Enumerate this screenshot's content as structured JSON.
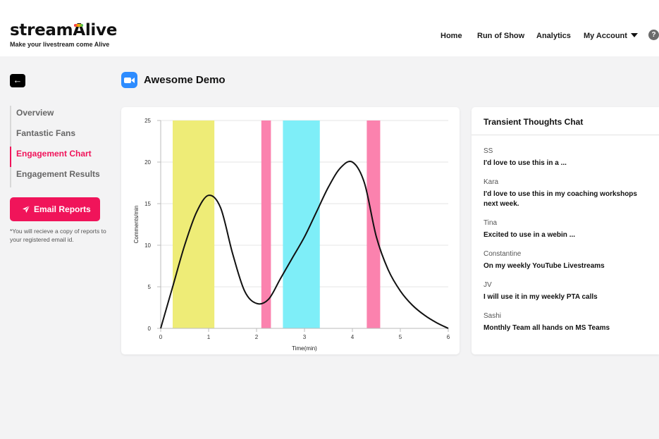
{
  "brand": {
    "name_pre": "stream",
    "name_a": "A",
    "name_post": "live",
    "tagline": "Make your livestream come Alive"
  },
  "nav": {
    "items": [
      "Home",
      "Run of Show",
      "Analytics",
      "My Account"
    ],
    "help": "?"
  },
  "page": {
    "back": "←",
    "title": "Awesome Demo"
  },
  "sidebar": {
    "items": [
      {
        "label": "Overview",
        "active": false
      },
      {
        "label": "Fantastic Fans",
        "active": false
      },
      {
        "label": "Engagement Chart",
        "active": true
      },
      {
        "label": "Engagement Results",
        "active": false
      }
    ],
    "email_button": "Email Reports",
    "email_note": "*You will recieve a copy of reports to your registered email id."
  },
  "chat": {
    "title": "Transient Thoughts Chat",
    "messages": [
      {
        "user": "SS",
        "text": "I'd love to use this in a ..."
      },
      {
        "user": "Kara",
        "text": "I'd love to use this in my coaching workshops next week."
      },
      {
        "user": "Tina",
        "text": "Excited to use in a webin ..."
      },
      {
        "user": "Constantine",
        "text": "On my weekly YouTube Livestreams"
      },
      {
        "user": "JV",
        "text": "I will use it in my weekly PTA calls"
      },
      {
        "user": "Sashi",
        "text": "Monthly Team all hands on MS Teams"
      }
    ]
  },
  "colors": {
    "accent": "#f0145a",
    "zoom_blue": "#2d8cff",
    "band_yellow": "#eeec77",
    "band_pink": "#fb82ae",
    "band_cyan": "#7eeef8"
  },
  "chart_data": {
    "type": "line",
    "xlabel": "Time(min)",
    "ylabel": "Comments/min",
    "xlim": [
      0,
      6
    ],
    "ylim": [
      0,
      25
    ],
    "xticks": [
      0,
      1,
      2,
      3,
      4,
      5,
      6
    ],
    "yticks": [
      0,
      5,
      10,
      15,
      20,
      25
    ],
    "grid": "horizontal",
    "x": [
      0,
      0.25,
      0.5,
      0.75,
      1.0,
      1.25,
      1.5,
      1.75,
      2.0,
      2.25,
      2.5,
      2.75,
      3.0,
      3.25,
      3.5,
      3.75,
      4.0,
      4.25,
      4.5,
      4.75,
      5.0,
      5.25,
      5.5,
      5.75,
      6.0
    ],
    "y": [
      0,
      5,
      10,
      14,
      16,
      14.5,
      9,
      4.5,
      3,
      3.5,
      6,
      8.5,
      11,
      14,
      17,
      19.3,
      20,
      17.5,
      11,
      7,
      4.5,
      2.8,
      1.6,
      0.7,
      0
    ],
    "bands": [
      {
        "from": 0.25,
        "to": 1.12,
        "color": "#eeec77"
      },
      {
        "from": 2.1,
        "to": 2.3,
        "color": "#fb82ae"
      },
      {
        "from": 2.55,
        "to": 3.32,
        "color": "#7eeef8"
      },
      {
        "from": 4.3,
        "to": 4.58,
        "color": "#fb82ae"
      }
    ]
  }
}
